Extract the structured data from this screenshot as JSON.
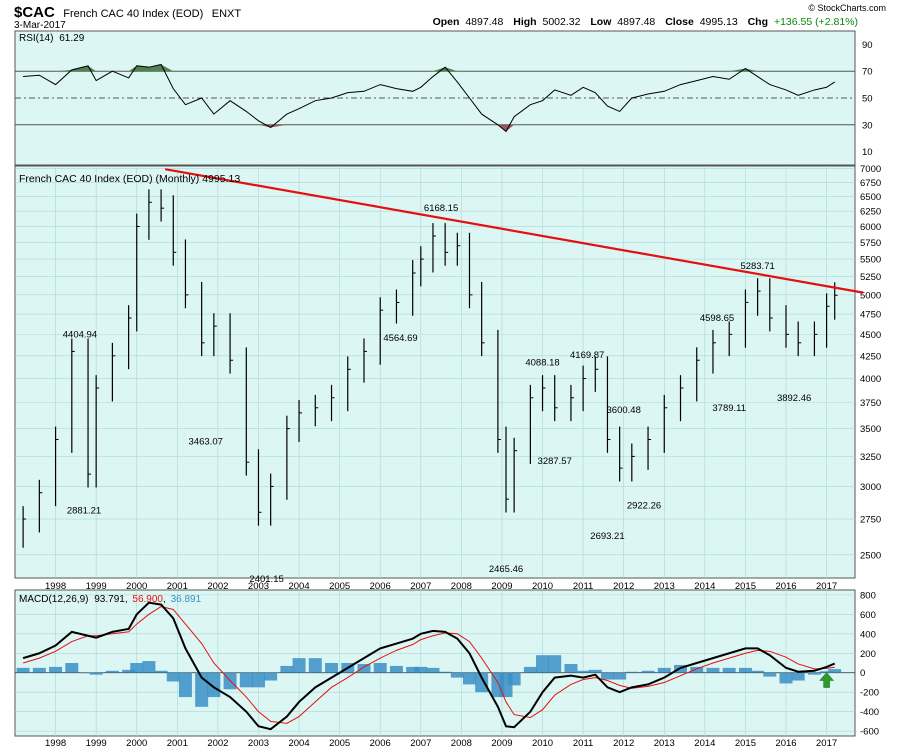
{
  "header": {
    "symbol": "$CAC",
    "name": "French CAC 40 Index (EOD)",
    "exchange": "ENXT",
    "date": "3-Mar-2017",
    "brand": "© StockCharts.com",
    "open_label": "Open",
    "open": "4897.48",
    "high_label": "High",
    "high": "5002.32",
    "low_label": "Low",
    "low": "4897.48",
    "close_label": "Close",
    "close": "4995.13",
    "chg_label": "Chg",
    "chg": "+136.55 (+2.81%)",
    "chg_color": "#0a8a0a"
  },
  "colors": {
    "panel_bg": "#dcf6f3",
    "grid": "#a8d8d6",
    "trendline": "#e41010",
    "macd_line": "#000000",
    "signal_line": "#e41010",
    "histogram": "#3a8fc6",
    "rsi_over": "#4f8250",
    "rsi_under": "#9a5a5a",
    "arrow": "#2c9a2c"
  },
  "chart_data": [
    {
      "type": "line",
      "title": "RSI(14) 61.29",
      "label": "RSI(14)",
      "value": "61.29",
      "yticks": [
        10,
        30,
        50,
        70,
        90
      ],
      "ylim": [
        0,
        100
      ],
      "reference_lines": [
        30,
        50,
        70
      ],
      "x": [
        1997.2,
        1997.6,
        1998.0,
        1998.4,
        1998.8,
        1999.0,
        1999.4,
        1999.8,
        2000.0,
        2000.3,
        2000.6,
        2000.9,
        2001.2,
        2001.6,
        2001.9,
        2002.3,
        2002.7,
        2003.0,
        2003.3,
        2003.7,
        2004.0,
        2004.4,
        2004.8,
        2005.2,
        2005.6,
        2006.0,
        2006.4,
        2006.8,
        2007.0,
        2007.3,
        2007.6,
        2007.9,
        2008.2,
        2008.5,
        2008.9,
        2009.1,
        2009.3,
        2009.7,
        2010.0,
        2010.3,
        2010.7,
        2011.0,
        2011.3,
        2011.6,
        2011.9,
        2012.2,
        2012.6,
        2013.0,
        2013.4,
        2013.8,
        2014.2,
        2014.6,
        2015.0,
        2015.3,
        2015.6,
        2016.0,
        2016.3,
        2016.7,
        2017.0,
        2017.2
      ],
      "values": [
        66,
        67,
        60,
        71,
        74,
        63,
        70,
        65,
        74,
        73,
        75,
        57,
        45,
        50,
        38,
        48,
        40,
        33,
        28,
        38,
        42,
        48,
        50,
        54,
        55,
        60,
        57,
        55,
        58,
        66,
        73,
        62,
        50,
        38,
        30,
        25,
        36,
        45,
        48,
        56,
        52,
        58,
        54,
        44,
        40,
        50,
        53,
        55,
        60,
        63,
        66,
        64,
        72,
        66,
        60,
        56,
        52,
        56,
        58,
        62
      ]
    },
    {
      "type": "bar",
      "title": "French CAC 40 Index (EOD) (Monthly) 4995.13",
      "ylim": [
        2350,
        7050
      ],
      "yticks": [
        2500,
        2750,
        3000,
        3250,
        3500,
        3750,
        4000,
        4250,
        4500,
        4750,
        5000,
        5250,
        5500,
        5750,
        6000,
        6250,
        6500,
        6750,
        7000
      ],
      "x_tick_labels": [
        "1998",
        "1999",
        "2000",
        "2001",
        "2002",
        "2003",
        "2004",
        "2005",
        "2006",
        "2007",
        "2008",
        "2009",
        "2010",
        "2011",
        "2012",
        "2013",
        "2014",
        "2015",
        "2016",
        "2017"
      ],
      "x": [
        1997.2,
        1997.6,
        1998.0,
        1998.4,
        1998.8,
        1999.0,
        1999.4,
        1999.8,
        2000.0,
        2000.3,
        2000.6,
        2000.9,
        2001.2,
        2001.6,
        2001.9,
        2002.3,
        2002.7,
        2003.0,
        2003.3,
        2003.7,
        2004.0,
        2004.4,
        2004.8,
        2005.2,
        2005.6,
        2006.0,
        2006.4,
        2006.8,
        2007.0,
        2007.3,
        2007.6,
        2007.9,
        2008.2,
        2008.5,
        2008.9,
        2009.1,
        2009.3,
        2009.7,
        2010.0,
        2010.3,
        2010.7,
        2011.0,
        2011.3,
        2011.6,
        2011.9,
        2012.2,
        2012.6,
        2013.0,
        2013.4,
        2013.8,
        2014.2,
        2014.6,
        2015.0,
        2015.3,
        2015.6,
        2016.0,
        2016.3,
        2016.7,
        2017.0,
        2017.2
      ],
      "close": [
        2750,
        2950,
        3400,
        4300,
        3100,
        3900,
        4250,
        4700,
        6000,
        6400,
        6300,
        5600,
        5000,
        4400,
        4600,
        4200,
        3200,
        2800,
        3000,
        3500,
        3650,
        3700,
        3800,
        4100,
        4300,
        4800,
        4900,
        5300,
        5500,
        5850,
        5600,
        5700,
        5000,
        4400,
        3400,
        2900,
        3300,
        3800,
        3900,
        3700,
        3800,
        4000,
        4100,
        3400,
        3150,
        3250,
        3400,
        3700,
        3900,
        4200,
        4400,
        4500,
        4900,
        5050,
        4700,
        4500,
        4400,
        4500,
        4850,
        4995
      ],
      "annotations": [
        {
          "label": "4404.94",
          "x": 1998.6,
          "y": 4404.94,
          "pos": "above"
        },
        {
          "label": "2881.21",
          "x": 1998.7,
          "y": 2881.21,
          "pos": "below"
        },
        {
          "label": "3463.07",
          "x": 2001.7,
          "y": 3463.07,
          "pos": "below"
        },
        {
          "label": "2401.15",
          "x": 2003.2,
          "y": 2401.15,
          "pos": "below"
        },
        {
          "label": "4564.69",
          "x": 2006.5,
          "y": 4564.69,
          "pos": "below"
        },
        {
          "label": "6168.15",
          "x": 2007.5,
          "y": 6168.15,
          "pos": "above"
        },
        {
          "label": "2465.46",
          "x": 2009.1,
          "y": 2465.46,
          "pos": "below"
        },
        {
          "label": "4088.18",
          "x": 2010.0,
          "y": 4088.18,
          "pos": "above"
        },
        {
          "label": "3287.57",
          "x": 2010.3,
          "y": 3287.57,
          "pos": "below"
        },
        {
          "label": "4169.87",
          "x": 2011.1,
          "y": 4169.87,
          "pos": "above"
        },
        {
          "label": "2693.21",
          "x": 2011.6,
          "y": 2693.21,
          "pos": "below"
        },
        {
          "label": "3600.48",
          "x": 2012.0,
          "y": 3600.48,
          "pos": "above"
        },
        {
          "label": "2922.26",
          "x": 2012.5,
          "y": 2922.26,
          "pos": "below"
        },
        {
          "label": "4598.65",
          "x": 2014.3,
          "y": 4598.65,
          "pos": "above"
        },
        {
          "label": "3789.11",
          "x": 2014.6,
          "y": 3789.11,
          "pos": "below"
        },
        {
          "label": "5283.71",
          "x": 2015.3,
          "y": 5283.71,
          "pos": "above"
        },
        {
          "label": "3892.46",
          "x": 2016.2,
          "y": 3892.46,
          "pos": "below"
        }
      ],
      "trendline": {
        "x": [
          2000.7,
          2017.9
        ],
        "y": [
          6990,
          5030
        ]
      }
    },
    {
      "type": "line",
      "title": "MACD(12,26,9) 93.791, 56.900, 36.891",
      "label": "MACD(12,26,9)",
      "macd_value": "93.791",
      "signal_value": "56.900",
      "hist_value": "36.891",
      "ylim": [
        -650,
        850
      ],
      "yticks": [
        -600,
        -400,
        -200,
        0,
        200,
        400,
        600,
        800
      ],
      "x_tick_labels": [
        "1998",
        "1999",
        "2000",
        "2001",
        "2002",
        "2003",
        "2004",
        "2005",
        "2006",
        "2007",
        "2008",
        "2009",
        "2010",
        "2011",
        "2012",
        "2013",
        "2014",
        "2015",
        "2016",
        "2017"
      ],
      "x": [
        1997.2,
        1997.6,
        1998.0,
        1998.4,
        1998.8,
        1999.0,
        1999.4,
        1999.8,
        2000.0,
        2000.3,
        2000.6,
        2000.9,
        2001.2,
        2001.6,
        2001.9,
        2002.3,
        2002.7,
        2003.0,
        2003.3,
        2003.7,
        2004.0,
        2004.4,
        2004.8,
        2005.2,
        2005.6,
        2006.0,
        2006.4,
        2006.8,
        2007.0,
        2007.3,
        2007.6,
        2007.9,
        2008.2,
        2008.5,
        2008.9,
        2009.1,
        2009.3,
        2009.7,
        2010.0,
        2010.3,
        2010.7,
        2011.0,
        2011.3,
        2011.6,
        2011.9,
        2012.2,
        2012.6,
        2013.0,
        2013.4,
        2013.8,
        2014.2,
        2014.6,
        2015.0,
        2015.3,
        2015.6,
        2016.0,
        2016.3,
        2016.7,
        2017.0,
        2017.2
      ],
      "macd": [
        150,
        200,
        280,
        420,
        380,
        360,
        420,
        450,
        600,
        720,
        700,
        560,
        250,
        -50,
        -150,
        -250,
        -400,
        -550,
        -580,
        -450,
        -300,
        -150,
        -50,
        50,
        150,
        250,
        300,
        350,
        400,
        430,
        420,
        350,
        200,
        -50,
        -350,
        -550,
        -560,
        -400,
        -200,
        -50,
        -30,
        -50,
        -20,
        -150,
        -200,
        -150,
        -120,
        -50,
        50,
        100,
        150,
        200,
        250,
        250,
        180,
        50,
        10,
        20,
        60,
        93.791
      ],
      "signal": [
        100,
        150,
        220,
        320,
        380,
        380,
        400,
        420,
        500,
        600,
        680,
        650,
        500,
        300,
        100,
        -80,
        -250,
        -400,
        -500,
        -520,
        -450,
        -300,
        -150,
        -50,
        60,
        150,
        230,
        290,
        340,
        380,
        410,
        400,
        320,
        150,
        -100,
        -300,
        -430,
        -460,
        -380,
        -230,
        -120,
        -70,
        -50,
        -80,
        -130,
        -160,
        -140,
        -100,
        -30,
        40,
        100,
        150,
        200,
        230,
        220,
        160,
        90,
        40,
        45,
        56.9
      ],
      "histogram": [
        50,
        50,
        60,
        100,
        0,
        -20,
        20,
        30,
        100,
        120,
        20,
        -90,
        -250,
        -350,
        -250,
        -170,
        -150,
        -150,
        -80,
        70,
        150,
        150,
        100,
        100,
        90,
        100,
        70,
        60,
        60,
        50,
        10,
        -50,
        -120,
        -200,
        -250,
        -250,
        -130,
        60,
        180,
        180,
        90,
        20,
        30,
        -70,
        -70,
        10,
        20,
        50,
        80,
        60,
        50,
        50,
        50,
        20,
        -40,
        -110,
        -80,
        -20,
        15,
        36.891
      ]
    }
  ]
}
